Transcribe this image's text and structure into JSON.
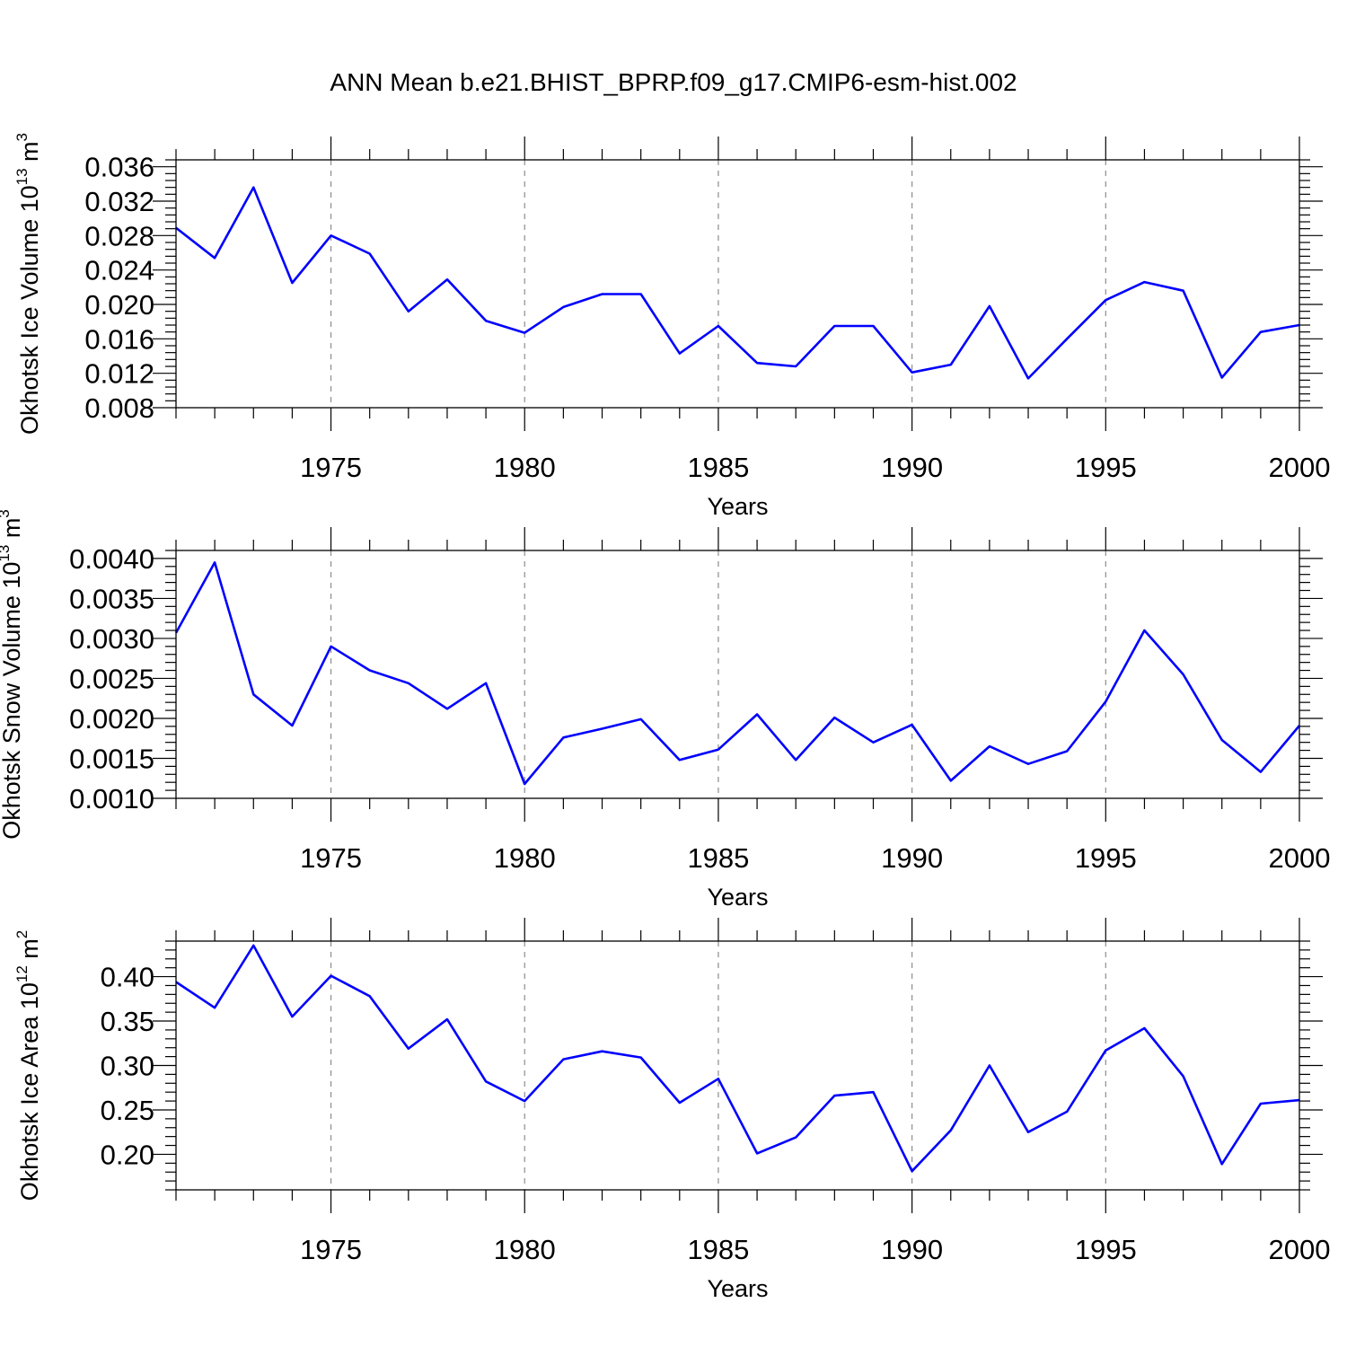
{
  "title": "ANN Mean b.e21.BHIST_BPRP.f09_g17.CMIP6-esm-hist.002",
  "line_color": "#0000ff",
  "chart_data": [
    {
      "type": "line",
      "xlabel": "Years",
      "ylabel": {
        "text": "Okhotsk Ice Volume 10",
        "sup": "13",
        "unit": " m",
        "unit_sup": "3"
      },
      "xlim": [
        1971,
        2000
      ],
      "ylim": [
        0.008,
        0.0368
      ],
      "xticks": [
        1975,
        1980,
        1985,
        1990,
        1995,
        2000
      ],
      "xtick_labels": [
        "1975",
        "1980",
        "1985",
        "1990",
        "1995",
        "2000"
      ],
      "yticks": [
        0.008,
        0.012,
        0.016,
        0.02,
        0.024,
        0.028,
        0.032,
        0.036
      ],
      "ytick_labels": [
        "0.008",
        "0.012",
        "0.016",
        "0.020",
        "0.024",
        "0.028",
        "0.032",
        "0.036"
      ],
      "y_minor_step": 0.0008,
      "grid": "vertical dashed at major x ticks",
      "x": [
        1971,
        1972,
        1973,
        1974,
        1975,
        1976,
        1977,
        1978,
        1979,
        1980,
        1981,
        1982,
        1983,
        1984,
        1985,
        1986,
        1987,
        1988,
        1989,
        1990,
        1991,
        1992,
        1993,
        1994,
        1995,
        1996,
        1997,
        1998,
        1999,
        2000
      ],
      "values": [
        0.0289,
        0.0254,
        0.0336,
        0.0225,
        0.028,
        0.0259,
        0.0192,
        0.0229,
        0.0181,
        0.0167,
        0.0197,
        0.0212,
        0.0212,
        0.0143,
        0.0175,
        0.0132,
        0.0128,
        0.0175,
        0.0175,
        0.0121,
        0.013,
        0.0198,
        0.0114,
        0.016,
        0.0205,
        0.0226,
        0.0216,
        0.0115,
        0.0168,
        0.0176
      ]
    },
    {
      "type": "line",
      "xlabel": "Years",
      "ylabel": {
        "text": "Okhotsk Snow Volume 10",
        "sup": "13",
        "unit": " m",
        "unit_sup": "3"
      },
      "xlim": [
        1971,
        2000
      ],
      "ylim": [
        0.001,
        0.0041
      ],
      "xticks": [
        1975,
        1980,
        1985,
        1990,
        1995,
        2000
      ],
      "xtick_labels": [
        "1975",
        "1980",
        "1985",
        "1990",
        "1995",
        "2000"
      ],
      "yticks": [
        0.001,
        0.0015,
        0.002,
        0.0025,
        0.003,
        0.0035,
        0.004
      ],
      "ytick_labels": [
        "0.0010",
        "0.0015",
        "0.0020",
        "0.0025",
        "0.0030",
        "0.0035",
        "0.0040"
      ],
      "y_minor_step": 0.0001,
      "grid": "vertical dashed at major x ticks",
      "x": [
        1971,
        1972,
        1973,
        1974,
        1975,
        1976,
        1977,
        1978,
        1979,
        1980,
        1981,
        1982,
        1983,
        1984,
        1985,
        1986,
        1987,
        1988,
        1989,
        1990,
        1991,
        1992,
        1993,
        1994,
        1995,
        1996,
        1997,
        1998,
        1999,
        2000
      ],
      "values": [
        0.00307,
        0.00395,
        0.0023,
        0.00191,
        0.0029,
        0.0026,
        0.00244,
        0.00212,
        0.00244,
        0.00118,
        0.00176,
        0.00187,
        0.00199,
        0.00148,
        0.00161,
        0.00205,
        0.00148,
        0.00201,
        0.0017,
        0.00192,
        0.00122,
        0.00165,
        0.00143,
        0.00159,
        0.00221,
        0.0031,
        0.00255,
        0.00173,
        0.00133,
        0.00191
      ]
    },
    {
      "type": "line",
      "xlabel": "Years",
      "ylabel": {
        "text": "Okhotsk Ice Area 10",
        "sup": "12",
        "unit": " m",
        "unit_sup": "2"
      },
      "xlim": [
        1971,
        2000
      ],
      "ylim": [
        0.16,
        0.44
      ],
      "xticks": [
        1975,
        1980,
        1985,
        1990,
        1995,
        2000
      ],
      "xtick_labels": [
        "1975",
        "1980",
        "1985",
        "1990",
        "1995",
        "2000"
      ],
      "yticks": [
        0.2,
        0.25,
        0.3,
        0.35,
        0.4
      ],
      "ytick_labels": [
        "0.20",
        "0.25",
        "0.30",
        "0.35",
        "0.40"
      ],
      "y_minor_step": 0.01,
      "grid": "vertical dashed at major x ticks",
      "x": [
        1971,
        1972,
        1973,
        1974,
        1975,
        1976,
        1977,
        1978,
        1979,
        1980,
        1981,
        1982,
        1983,
        1984,
        1985,
        1986,
        1987,
        1988,
        1989,
        1990,
        1991,
        1992,
        1993,
        1994,
        1995,
        1996,
        1997,
        1998,
        1999,
        2000
      ],
      "values": [
        0.394,
        0.365,
        0.435,
        0.355,
        0.401,
        0.378,
        0.319,
        0.352,
        0.282,
        0.26,
        0.307,
        0.316,
        0.309,
        0.258,
        0.285,
        0.201,
        0.219,
        0.266,
        0.27,
        0.181,
        0.227,
        0.3,
        0.225,
        0.248,
        0.317,
        0.342,
        0.288,
        0.189,
        0.257,
        0.261
      ]
    }
  ]
}
